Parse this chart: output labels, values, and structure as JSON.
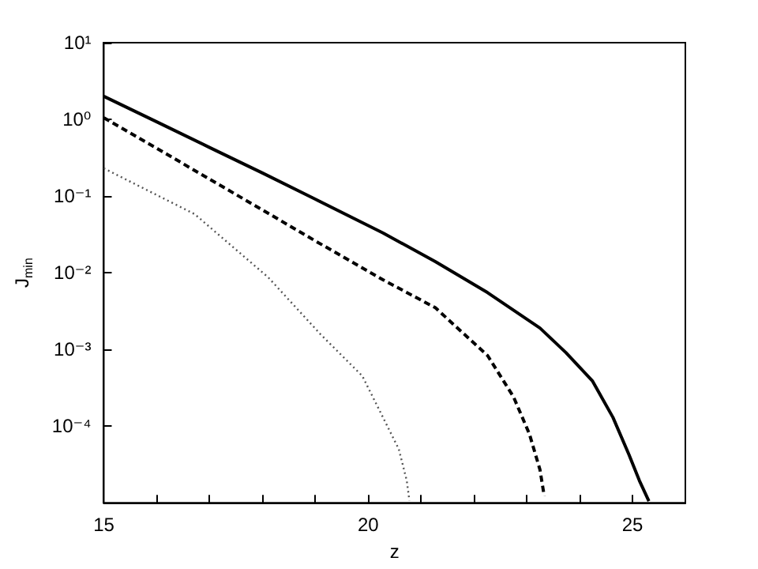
{
  "chart_data": {
    "type": "line",
    "xlabel": "z",
    "ylabel": "J$_{min}$",
    "log": "y",
    "marker": "none",
    "xlim": [
      15,
      26
    ],
    "ylim": [
      1e-05,
      10
    ],
    "xticks": [
      15,
      {
        "value": 16,
        "label": null
      },
      {
        "value": 17,
        "label": null
      },
      {
        "value": 18,
        "label": null
      },
      {
        "value": 19,
        "label": null
      },
      20,
      {
        "value": 21,
        "label": null
      },
      {
        "value": 22,
        "label": null
      },
      {
        "value": 23,
        "label": null
      },
      {
        "value": 24,
        "label": null
      },
      25
    ],
    "yticks": [
      {
        "value": 1e-05,
        "label": null
      },
      {
        "value": 0.0001,
        "label": "10⁻⁴"
      },
      {
        "value": 0.001,
        "label": "10⁻³"
      },
      {
        "value": 0.01,
        "label": "10⁻²"
      },
      {
        "value": 0.1,
        "label": "10⁻¹"
      },
      {
        "value": 1,
        "label": "10⁰"
      },
      {
        "value": 10,
        "label": "10¹"
      }
    ],
    "series": [
      {
        "color": "#000000",
        "line_style": "solid",
        "x": [
          15,
          16,
          17,
          18,
          19,
          20.28,
          21.27,
          22.26,
          23.25,
          23.74,
          24.24,
          24.63,
          24.93,
          25.13,
          25.31
        ],
        "values": [
          2.0,
          0.93,
          0.43,
          0.2,
          0.091,
          0.033,
          0.014,
          0.0055,
          0.0019,
          0.00091,
          0.00039,
          0.00013,
          4.3e-05,
          1.95e-05,
          1.05e-05
        ]
      },
      {
        "color": "#000000",
        "line_style": "dashed",
        "x": [
          15,
          16,
          17,
          18,
          19,
          20.28,
          21.27,
          22.26,
          22.75,
          23.05,
          23.25,
          23.33
        ],
        "values": [
          1.05,
          0.42,
          0.166,
          0.066,
          0.026,
          0.0081,
          0.0035,
          0.00083,
          0.00024,
          7.9e-05,
          2.7e-05,
          1.23e-05
        ]
      },
      {
        "color": "#555555",
        "line_style": "dotted",
        "x": [
          15,
          16.72,
          18.11,
          19.09,
          19.89,
          20.28,
          20.58,
          20.73,
          20.78
        ],
        "values": [
          0.23,
          0.058,
          0.0087,
          0.0016,
          0.00045,
          0.00013,
          5e-05,
          1.95e-05,
          1.07e-05
        ]
      }
    ]
  }
}
